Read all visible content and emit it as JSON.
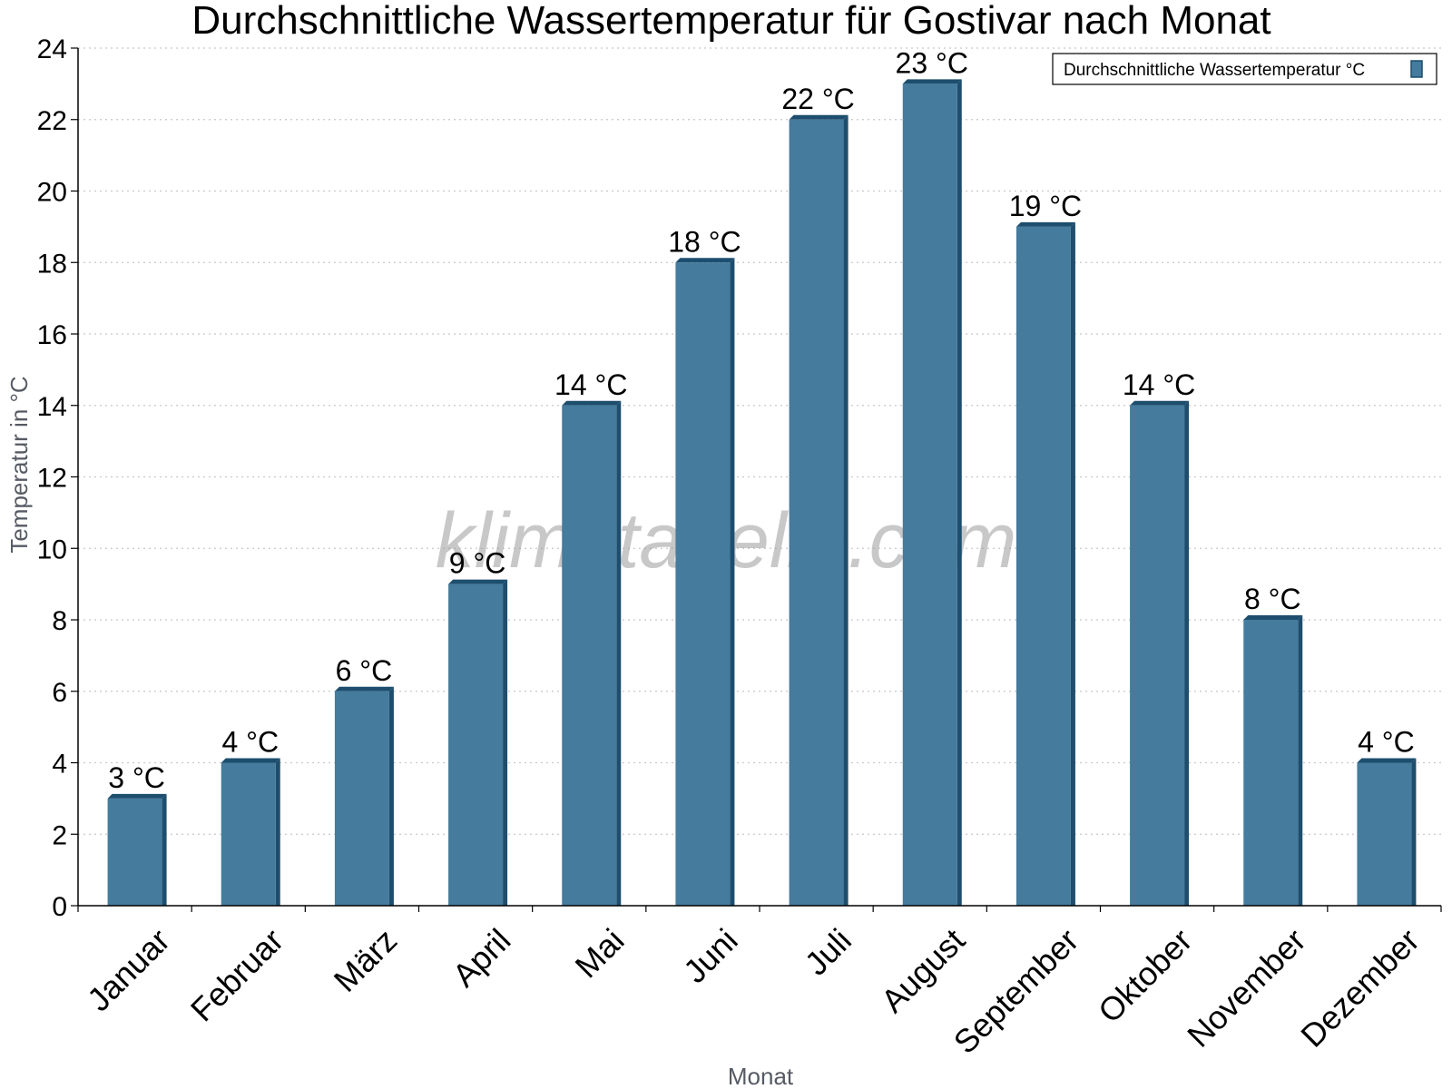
{
  "chart_data": {
    "type": "bar",
    "title": "Durchschnittliche Wassertemperatur für Gostivar nach Monat",
    "xlabel": "Monat",
    "ylabel": "Temperatur in °C",
    "categories": [
      "Januar",
      "Februar",
      "März",
      "April",
      "Mai",
      "Juni",
      "Juli",
      "August",
      "September",
      "Oktober",
      "November",
      "Dezember"
    ],
    "series": [
      {
        "name": "Durchschnittliche Wassertemperatur °C",
        "values": [
          3,
          4,
          6,
          9,
          14,
          18,
          22,
          23,
          19,
          14,
          8,
          4
        ],
        "labels": [
          "3 °C",
          "4 °C",
          "6 °C",
          "9 °C",
          "14 °C",
          "18 °C",
          "22 °C",
          "23 °C",
          "19 °C",
          "14 °C",
          "8 °C",
          "4 °C"
        ]
      }
    ],
    "ylim": [
      0,
      24
    ],
    "yticks": [
      "0",
      "2",
      "4",
      "6",
      "8",
      "10",
      "12",
      "14",
      "16",
      "18",
      "20",
      "22",
      "24"
    ],
    "grid": true,
    "legend_position": "top-right",
    "bar_color": "#457b9d",
    "bar_shade_color": "#1d4e6e",
    "watermark": "klimatabelle.com"
  }
}
